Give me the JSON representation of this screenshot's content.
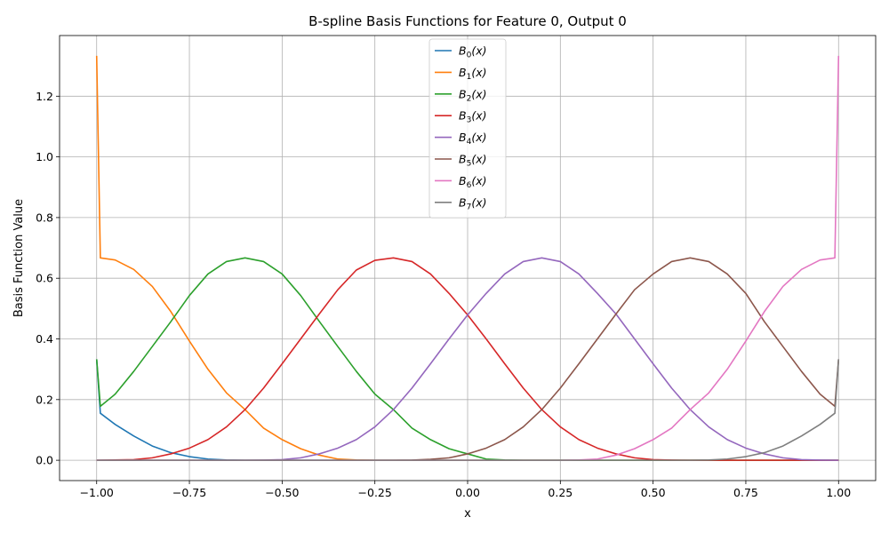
{
  "chart_data": {
    "type": "line",
    "title": "B-spline Basis Functions for Feature 0, Output 0",
    "xlabel": "x",
    "ylabel": "Basis Function Value",
    "xlim": [
      -1.1,
      1.1
    ],
    "ylim": [
      -0.067,
      1.4
    ],
    "xticks": [
      -1.0,
      -0.75,
      -0.5,
      -0.25,
      0.0,
      0.25,
      0.5,
      0.75,
      1.0
    ],
    "xtick_labels": [
      "−1.00",
      "−0.75",
      "−0.50",
      "−0.25",
      "0.00",
      "0.25",
      "0.50",
      "0.75",
      "1.00"
    ],
    "yticks": [
      0.0,
      0.2,
      0.4,
      0.6,
      0.8,
      1.0,
      1.2
    ],
    "ytick_labels": [
      "0.0",
      "0.2",
      "0.4",
      "0.6",
      "0.8",
      "1.0",
      "1.2"
    ],
    "grid": true,
    "legend_position": "top-center",
    "series": [
      {
        "name": "B0(x)",
        "label_base": "B",
        "label_sub": "0",
        "label_arg": "(x)",
        "color": "#1f77b4",
        "x": [
          -1.0,
          -0.99,
          -0.95,
          -0.9,
          -0.85,
          -0.8,
          -0.75,
          -0.7,
          -0.65,
          -0.6,
          1.0
        ],
        "y": [
          0.333,
          0.155,
          0.118,
          0.08,
          0.047,
          0.025,
          0.012,
          0.004,
          0.0008,
          0.0,
          0.0
        ]
      },
      {
        "name": "B1(x)",
        "label_base": "B",
        "label_sub": "1",
        "label_arg": "(x)",
        "color": "#ff7f0e",
        "x": [
          -1.0,
          -0.99,
          -0.95,
          -0.9,
          -0.85,
          -0.8,
          -0.75,
          -0.7,
          -0.65,
          -0.6,
          -0.55,
          -0.5,
          -0.45,
          -0.4,
          -0.35,
          -0.3,
          -0.25,
          -0.2,
          1.0
        ],
        "y": [
          1.333,
          0.667,
          0.66,
          0.629,
          0.573,
          0.49,
          0.393,
          0.3,
          0.222,
          0.167,
          0.106,
          0.068,
          0.038,
          0.017,
          0.004,
          0.001,
          0.0,
          0.0,
          0.0
        ]
      },
      {
        "name": "B2(x)",
        "label_base": "B",
        "label_sub": "2",
        "label_arg": "(x)",
        "color": "#2ca02c",
        "x": [
          -1.0,
          -0.99,
          -0.95,
          -0.9,
          -0.85,
          -0.8,
          -0.75,
          -0.7,
          -0.65,
          -0.6,
          -0.55,
          -0.5,
          -0.45,
          -0.4,
          -0.35,
          -0.3,
          -0.25,
          -0.2,
          -0.15,
          -0.1,
          -0.05,
          0.0,
          0.05,
          0.1,
          0.15,
          0.2,
          1.0
        ],
        "y": [
          0.333,
          0.178,
          0.218,
          0.293,
          0.375,
          0.457,
          0.543,
          0.614,
          0.655,
          0.667,
          0.655,
          0.614,
          0.543,
          0.458,
          0.375,
          0.293,
          0.218,
          0.167,
          0.106,
          0.068,
          0.038,
          0.021,
          0.004,
          0.001,
          0.0,
          0.0,
          0.0
        ]
      },
      {
        "name": "B3(x)",
        "label_base": "B",
        "label_sub": "3",
        "label_arg": "(x)",
        "color": "#d62728",
        "x": [
          -1.0,
          -0.9,
          -0.85,
          -0.8,
          -0.75,
          -0.7,
          -0.65,
          -0.6,
          -0.55,
          -0.5,
          -0.45,
          -0.4,
          -0.35,
          -0.3,
          -0.25,
          -0.2,
          -0.15,
          -0.1,
          -0.05,
          0.0,
          0.05,
          0.1,
          0.15,
          0.2,
          0.25,
          0.3,
          0.35,
          0.4,
          0.45,
          0.5,
          0.55,
          0.6,
          1.0
        ],
        "y": [
          0.0,
          0.002,
          0.008,
          0.021,
          0.04,
          0.068,
          0.11,
          0.167,
          0.238,
          0.318,
          0.4,
          0.482,
          0.562,
          0.627,
          0.659,
          0.667,
          0.655,
          0.614,
          0.55,
          0.479,
          0.4,
          0.318,
          0.238,
          0.167,
          0.11,
          0.068,
          0.04,
          0.021,
          0.008,
          0.002,
          0.0005,
          0.0,
          0.0
        ]
      },
      {
        "name": "B4(x)",
        "label_base": "B",
        "label_sub": "4",
        "label_arg": "(x)",
        "color": "#9467bd",
        "x": [
          -1.0,
          -0.6,
          -0.55,
          -0.5,
          -0.45,
          -0.4,
          -0.35,
          -0.3,
          -0.25,
          -0.2,
          -0.15,
          -0.1,
          -0.05,
          0.0,
          0.05,
          0.1,
          0.15,
          0.2,
          0.25,
          0.3,
          0.35,
          0.4,
          0.45,
          0.5,
          0.55,
          0.6,
          0.65,
          0.7,
          0.75,
          0.8,
          0.85,
          0.9,
          0.95,
          1.0
        ],
        "y": [
          0.0,
          0.0,
          0.0005,
          0.002,
          0.008,
          0.021,
          0.04,
          0.068,
          0.11,
          0.167,
          0.238,
          0.318,
          0.4,
          0.479,
          0.55,
          0.614,
          0.655,
          0.667,
          0.655,
          0.614,
          0.55,
          0.482,
          0.4,
          0.318,
          0.238,
          0.167,
          0.11,
          0.068,
          0.04,
          0.021,
          0.008,
          0.002,
          0.0005,
          0.0
        ]
      },
      {
        "name": "B5(x)",
        "label_base": "B",
        "label_sub": "5",
        "label_arg": "(x)",
        "color": "#8c564b",
        "x": [
          -1.0,
          -0.2,
          -0.15,
          -0.1,
          -0.05,
          0.0,
          0.05,
          0.1,
          0.15,
          0.2,
          0.25,
          0.3,
          0.35,
          0.4,
          0.45,
          0.5,
          0.55,
          0.6,
          0.65,
          0.7,
          0.75,
          0.8,
          0.85,
          0.9,
          0.95,
          0.99,
          1.0
        ],
        "y": [
          0.0,
          0.0,
          0.0005,
          0.003,
          0.008,
          0.021,
          0.04,
          0.068,
          0.11,
          0.167,
          0.238,
          0.318,
          0.4,
          0.482,
          0.562,
          0.614,
          0.655,
          0.667,
          0.655,
          0.614,
          0.55,
          0.457,
          0.375,
          0.293,
          0.218,
          0.178,
          0.333
        ]
      },
      {
        "name": "B6(x)",
        "label_base": "B",
        "label_sub": "6",
        "label_arg": "(x)",
        "color": "#e377c2",
        "x": [
          -1.0,
          0.2,
          0.25,
          0.3,
          0.35,
          0.4,
          0.45,
          0.5,
          0.55,
          0.6,
          0.65,
          0.7,
          0.75,
          0.8,
          0.85,
          0.9,
          0.95,
          0.99,
          1.0
        ],
        "y": [
          0.0,
          0.0,
          0.0,
          0.001,
          0.004,
          0.017,
          0.038,
          0.068,
          0.106,
          0.167,
          0.222,
          0.3,
          0.393,
          0.49,
          0.573,
          0.629,
          0.66,
          0.667,
          1.333
        ]
      },
      {
        "name": "B7(x)",
        "label_base": "B",
        "label_sub": "7",
        "label_arg": "(x)",
        "color": "#7f7f7f",
        "x": [
          -1.0,
          0.6,
          0.65,
          0.7,
          0.75,
          0.8,
          0.85,
          0.9,
          0.95,
          0.99,
          1.0
        ],
        "y": [
          0.0,
          0.0,
          0.0008,
          0.004,
          0.012,
          0.025,
          0.047,
          0.08,
          0.118,
          0.155,
          0.333
        ]
      }
    ]
  }
}
